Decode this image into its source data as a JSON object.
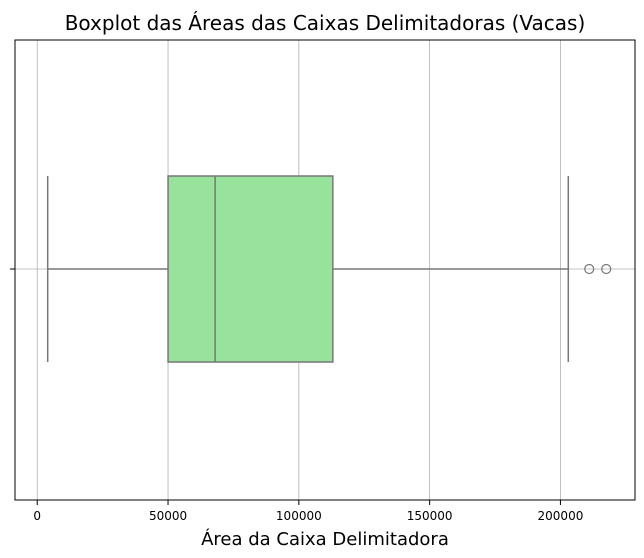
{
  "chart_data": {
    "type": "boxplot",
    "orientation": "horizontal",
    "title": "Boxplot das Áreas das Caixas Delimitadoras (Vacas)",
    "xlabel": "Área da Caixa Delimitadora",
    "ylabel": "",
    "xlim": [
      -8500,
      228500
    ],
    "xticks": [
      0,
      50000,
      100000,
      150000,
      200000
    ],
    "xtick_labels": [
      "0",
      "50000",
      "100000",
      "150000",
      "200000"
    ],
    "grid": true,
    "box": {
      "whisker_low": 4000,
      "q1": 50000,
      "median": 68000,
      "q3": 113000,
      "whisker_high": 203000,
      "outliers": [
        211000,
        217500
      ]
    },
    "colors": {
      "box_fill": "#98e39b",
      "line": "#777777",
      "grid": "#b0b0b0",
      "frame": "#000000"
    }
  }
}
